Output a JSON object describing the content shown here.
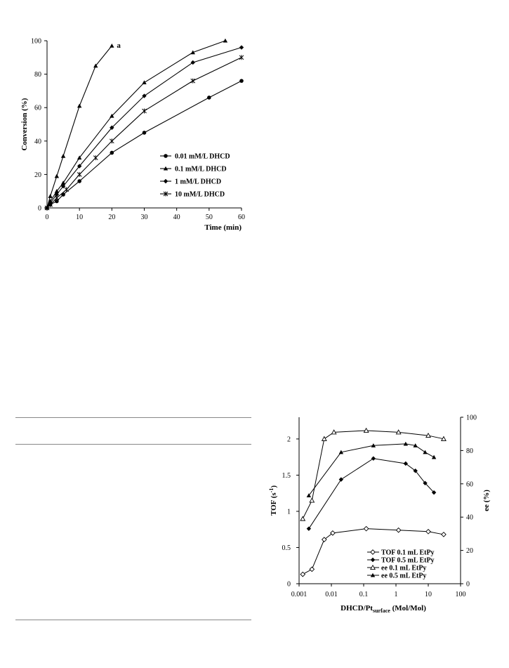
{
  "chart_data": [
    {
      "type": "line",
      "annotation": "a",
      "xlabel": "Time (min)",
      "ylabel": "Conversion (%)",
      "xlim": [
        0,
        60
      ],
      "ylim": [
        0,
        100
      ],
      "xticks": [
        0,
        10,
        20,
        30,
        40,
        50,
        60
      ],
      "yticks": [
        0,
        20,
        40,
        60,
        80,
        100
      ],
      "grid": false,
      "legend_position": "bottom-right",
      "series": [
        {
          "name": "0.01 mM/L DHCD",
          "marker": "circle",
          "x": [
            0,
            1,
            3,
            5,
            10,
            20,
            30,
            50,
            60
          ],
          "y": [
            0,
            2,
            4,
            8,
            16,
            33,
            45,
            66,
            76
          ]
        },
        {
          "name": "0.1 mM/L DHCD",
          "marker": "triangle",
          "x": [
            0,
            1,
            3,
            5,
            10,
            15,
            20
          ],
          "y": [
            0,
            7,
            19,
            31,
            61,
            85,
            97
          ]
        },
        {
          "name": "1 mM/L DHCD",
          "marker": "diamond",
          "x": [
            0,
            1,
            3,
            5,
            10,
            20,
            30,
            45,
            60
          ],
          "y": [
            0,
            3,
            8,
            13,
            25,
            48,
            67,
            87,
            96
          ]
        },
        {
          "name": "10 mM/L DHCD",
          "marker": "asterisk",
          "x": [
            0,
            1,
            3,
            6,
            10,
            15,
            20,
            30,
            45,
            60
          ],
          "y": [
            0,
            2,
            6,
            11,
            20,
            30,
            40,
            58,
            76,
            90
          ]
        },
        {
          "name": "",
          "marker": "triangle",
          "x": [
            0,
            1,
            3,
            5,
            10,
            20,
            30,
            45,
            55
          ],
          "y": [
            0,
            4,
            10,
            15,
            30,
            55,
            75,
            93,
            100
          ]
        }
      ]
    },
    {
      "type": "line",
      "xlabel_main": "DHCD/Pt",
      "xlabel_sub": "surface",
      "xlabel_tail": " (Mol/Mol)",
      "ylabel": "TOF (s",
      "ylabel_sup": "-1",
      "ylabel_tail": ")",
      "y2label": "ee (%)",
      "xscale": "log",
      "xlim": [
        0.001,
        100
      ],
      "xticks": [
        "0.001",
        "0.01",
        "0.1",
        "1",
        "10",
        "100"
      ],
      "ylim": [
        0,
        2.3
      ],
      "yticks": [
        "0",
        "0.5",
        "1",
        "1.5",
        "2"
      ],
      "y2lim": [
        0,
        100
      ],
      "y2ticks": [
        "0",
        "20",
        "40",
        "60",
        "80",
        "100"
      ],
      "legend_position": "bottom-right",
      "series": [
        {
          "name": "TOF  0.1 mL EtPy",
          "axis": "left",
          "marker": "diamond-open",
          "x": [
            0.0013,
            0.0025,
            0.006,
            0.011,
            0.12,
            1.2,
            10,
            30
          ],
          "y": [
            0.13,
            0.2,
            0.61,
            0.7,
            0.76,
            0.74,
            0.72,
            0.68
          ]
        },
        {
          "name": "TOF  0.5 mL EtPy",
          "axis": "left",
          "marker": "diamond-filled",
          "x": [
            0.002,
            0.02,
            0.2,
            2,
            4,
            8,
            15
          ],
          "y": [
            0.76,
            1.44,
            1.73,
            1.66,
            1.56,
            1.39,
            1.26
          ]
        },
        {
          "name": "ee  0.1 mL EtPy",
          "axis": "right",
          "marker": "triangle-open",
          "x": [
            0.0013,
            0.0025,
            0.006,
            0.012,
            0.12,
            1.2,
            10,
            30
          ],
          "y": [
            39,
            50,
            87,
            91,
            92,
            91,
            89,
            87
          ]
        },
        {
          "name": "ee  0.5 mL EtPy",
          "axis": "right",
          "marker": "triangle-filled",
          "x": [
            0.002,
            0.02,
            0.2,
            2,
            4,
            8,
            15
          ],
          "y": [
            53,
            79,
            83,
            84,
            83,
            79,
            76
          ]
        }
      ]
    }
  ]
}
